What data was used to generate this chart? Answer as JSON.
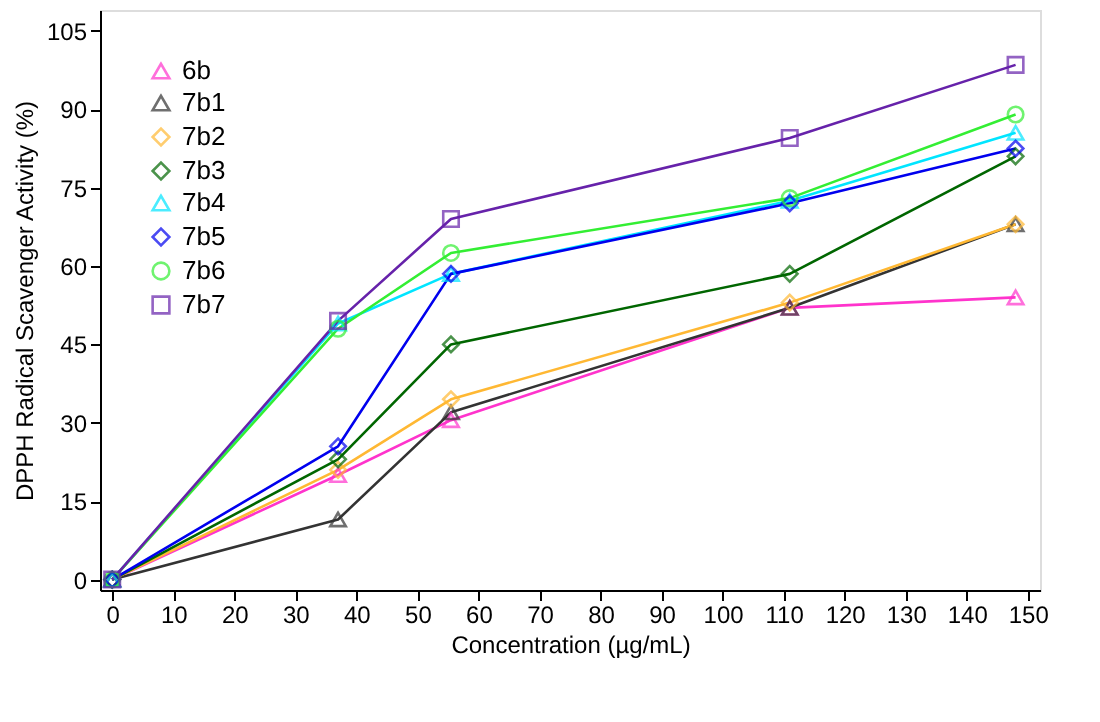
{
  "chart_data": {
    "type": "line",
    "xlabel": "Concentration (µg/mL)",
    "ylabel": "DPPH Radical Scavenger Activity (%)",
    "x": [
      0,
      37,
      55.5,
      111,
      148
    ],
    "xlim": [
      -2,
      152
    ],
    "xticks": [
      0,
      10,
      20,
      30,
      40,
      50,
      60,
      70,
      80,
      90,
      100,
      110,
      120,
      130,
      140,
      150
    ],
    "ylim": [
      -2,
      109
    ],
    "yticks": [
      0,
      15,
      30,
      45,
      60,
      75,
      90,
      105
    ],
    "grid": false,
    "legend": "top left",
    "line_style": "solid",
    "series": [
      {
        "name": "6b",
        "color": "#ff33cc",
        "marker": "triangle",
        "values": [
          0,
          20,
          30.5,
          52,
          54
        ]
      },
      {
        "name": "7b1",
        "color": "#333333",
        "marker": "triangle",
        "values": [
          0,
          11.5,
          32,
          52,
          68
        ]
      },
      {
        "name": "7b2",
        "color": "#ffb833",
        "marker": "diamond",
        "values": [
          0,
          21,
          34.5,
          53,
          68
        ]
      },
      {
        "name": "7b3",
        "color": "#006600",
        "marker": "diamond",
        "values": [
          0,
          23,
          45,
          58.5,
          81
        ]
      },
      {
        "name": "7b4",
        "color": "#00e5ff",
        "marker": "triangle",
        "values": [
          0,
          49,
          58.5,
          72.5,
          85.5
        ]
      },
      {
        "name": "7b5",
        "color": "#0000ee",
        "marker": "diamond",
        "values": [
          0,
          25.5,
          58.5,
          72,
          82.5
        ]
      },
      {
        "name": "7b6",
        "color": "#33ee33",
        "marker": "circle",
        "values": [
          0,
          48,
          62.5,
          73,
          89
        ]
      },
      {
        "name": "7b7",
        "color": "#6622aa",
        "marker": "square",
        "values": [
          0,
          49.5,
          69,
          84.5,
          98.5
        ]
      }
    ]
  }
}
